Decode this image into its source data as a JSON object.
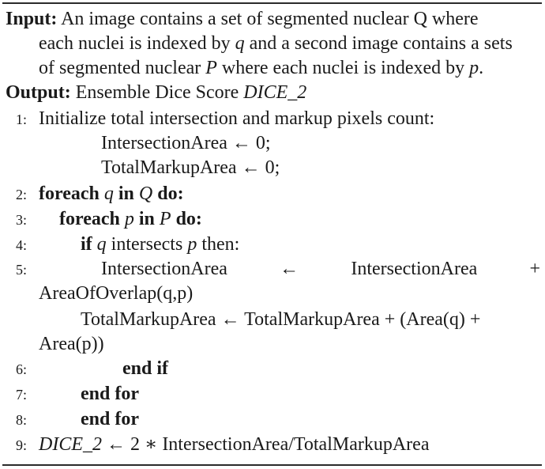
{
  "input": {
    "label": "Input:",
    "line1": "An image contains a set of segmented nuclear Q where",
    "line2_a": "each nuclei is indexed by ",
    "line2_q": "q",
    "line2_b": " and a second image contains a sets",
    "line3_a": "of segmented nuclear ",
    "line3_P": "P",
    "line3_b": " where each nuclei is indexed by ",
    "line3_p": "p",
    "line3_c": "."
  },
  "output": {
    "label": "Output:",
    "text": "Ensemble Dice Score ",
    "var": "DICE_2"
  },
  "steps": {
    "s1": {
      "num": "1:",
      "text": "Initialize total intersection and markup pixels count:"
    },
    "s1a": "IntersectionArea ← 0;",
    "s1b": "TotalMarkupArea ← 0;",
    "s2": {
      "num": "2:",
      "kw1": "foreach",
      "var": "q",
      "kw2": "in",
      "set": "Q",
      "kw3": "do:"
    },
    "s3": {
      "num": "3:",
      "kw1": "foreach",
      "var": "p",
      "kw2": "in",
      "set": "P",
      "kw3": "do:"
    },
    "s4": {
      "num": "4:",
      "kw": "if",
      "var1": "q",
      "mid": "intersects",
      "var2": "p",
      "tail": "then:"
    },
    "s5": {
      "num": "5:",
      "a": "IntersectionArea",
      "arrow": "←",
      "b": "IntersectionArea",
      "plus": "+",
      "cont": "AreaOfOverlap(q,p)"
    },
    "s5b": {
      "a": "TotalMarkupArea ← TotalMarkupArea + (Area(q) +",
      "cont": "Area(p))"
    },
    "s6": {
      "num": "6:",
      "kw": "end if"
    },
    "s7": {
      "num": "7:",
      "kw": "end for"
    },
    "s8": {
      "num": "8:",
      "kw": "end for"
    },
    "s9": {
      "num": "9:",
      "var": "DICE_2",
      "text": " ← 2 ∗ IntersectionArea/TotalMarkupArea"
    }
  }
}
